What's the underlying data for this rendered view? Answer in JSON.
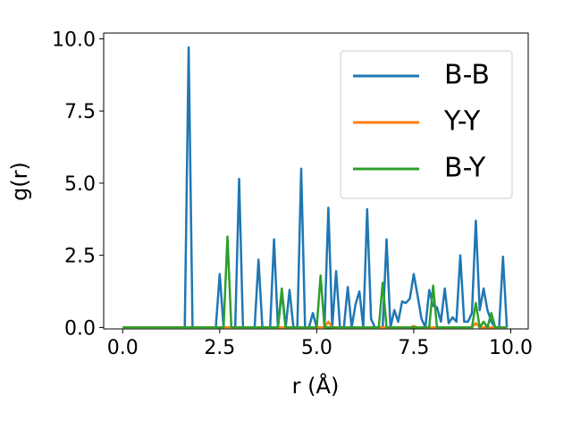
{
  "chart_data": {
    "type": "line",
    "xlabel": "r (Å)",
    "ylabel": "g(r)",
    "x": [
      0,
      0.1,
      0.2,
      0.3,
      0.4,
      0.5,
      0.6,
      0.7,
      0.8,
      0.9,
      1.0,
      1.1,
      1.2,
      1.3,
      1.4,
      1.5,
      1.6,
      1.7,
      1.8,
      1.9,
      2.0,
      2.1,
      2.2,
      2.3,
      2.4,
      2.5,
      2.6,
      2.7,
      2.8,
      2.9,
      3.0,
      3.1,
      3.2,
      3.3,
      3.4,
      3.5,
      3.6,
      3.7,
      3.8,
      3.9,
      4.0,
      4.1,
      4.2,
      4.3,
      4.4,
      4.5,
      4.6,
      4.7,
      4.8,
      4.9,
      5.0,
      5.1,
      5.2,
      5.3,
      5.4,
      5.5,
      5.6,
      5.7,
      5.8,
      5.9,
      6.0,
      6.1,
      6.2,
      6.3,
      6.4,
      6.5,
      6.6,
      6.7,
      6.8,
      6.9,
      7.0,
      7.1,
      7.2,
      7.3,
      7.4,
      7.5,
      7.6,
      7.7,
      7.8,
      7.9,
      8.0,
      8.1,
      8.2,
      8.3,
      8.4,
      8.5,
      8.6,
      8.7,
      8.8,
      8.9,
      9.0,
      9.1,
      9.2,
      9.3,
      9.4,
      9.5,
      9.6,
      9.7,
      9.8,
      9.9
    ],
    "series": [
      {
        "name": "B-B",
        "color": "#1f77b4",
        "values": [
          0,
          0,
          0,
          0,
          0,
          0,
          0,
          0,
          0,
          0,
          0,
          0,
          0,
          0,
          0,
          0,
          0,
          9.7,
          0,
          0,
          0,
          0,
          0,
          0,
          0,
          1.85,
          0,
          0,
          0,
          0,
          5.15,
          0,
          0,
          0,
          0,
          2.35,
          0,
          0,
          0,
          3.05,
          0,
          1.2,
          0,
          1.3,
          0,
          0,
          5.5,
          0,
          0,
          0.5,
          0,
          0,
          0,
          4.15,
          0,
          1.95,
          0,
          0,
          1.4,
          0,
          0.8,
          1.25,
          0,
          4.1,
          0.3,
          0,
          0,
          0,
          3.05,
          0,
          0.6,
          0.2,
          0.9,
          0.85,
          1.0,
          1.85,
          1.1,
          0.3,
          0,
          1.3,
          0.75,
          0.7,
          0.2,
          1.35,
          0.15,
          0.35,
          0.2,
          2.5,
          0.2,
          0.2,
          0.5,
          3.7,
          0.6,
          1.35,
          0.6,
          0.2,
          0,
          0,
          2.45,
          0
        ]
      },
      {
        "name": "Y-Y",
        "color": "#ff7f0e",
        "values": [
          0,
          0,
          0,
          0,
          0,
          0,
          0,
          0,
          0,
          0,
          0,
          0,
          0,
          0,
          0,
          0,
          0,
          0,
          0,
          0,
          0,
          0,
          0,
          0,
          0,
          0,
          0,
          0,
          0,
          0,
          0,
          0,
          0,
          0,
          0,
          0,
          0,
          0,
          0,
          0,
          0,
          0,
          0,
          0,
          0,
          0,
          0,
          0,
          0,
          0,
          0,
          0,
          0,
          0.2,
          0,
          0,
          0,
          0,
          0,
          0,
          0,
          0,
          0,
          0,
          0,
          0,
          0,
          0,
          0,
          0,
          0,
          0,
          0,
          0,
          0,
          0.05,
          0,
          0,
          0,
          0,
          0,
          0,
          0,
          0,
          0,
          0,
          0,
          0,
          0,
          0,
          0,
          0.15,
          0,
          0,
          0,
          0,
          0,
          0,
          0,
          0
        ]
      },
      {
        "name": "B-Y",
        "color": "#2ca02c",
        "values": [
          0,
          0,
          0,
          0,
          0,
          0,
          0,
          0,
          0,
          0,
          0,
          0,
          0,
          0,
          0,
          0,
          0,
          0,
          0,
          0,
          0,
          0,
          0,
          0,
          0,
          0,
          0,
          3.15,
          0,
          0,
          0,
          0,
          0,
          0,
          0,
          0,
          0,
          0,
          0,
          0,
          0,
          1.35,
          0,
          0,
          0,
          0,
          0,
          0,
          0,
          0,
          0,
          1.8,
          0,
          0,
          0,
          0,
          0,
          0,
          0,
          0,
          0,
          0,
          0,
          0,
          0,
          0,
          0,
          1.55,
          0,
          0,
          0,
          0,
          0,
          0,
          0,
          0,
          0,
          0,
          0,
          0,
          1.45,
          0,
          0,
          0,
          0,
          0,
          0,
          0,
          0,
          0,
          0,
          0.85,
          0,
          0.2,
          0,
          0.5,
          0,
          0,
          0,
          0
        ]
      }
    ],
    "xlim": [
      -0.49,
      10.45
    ],
    "ylim": [
      -0.05,
      10.2
    ],
    "xticks": [
      {
        "value": 0,
        "label": "0.0"
      },
      {
        "value": 2.5,
        "label": "2.5"
      },
      {
        "value": 5,
        "label": "5.0"
      },
      {
        "value": 7.5,
        "label": "7.5"
      },
      {
        "value": 10,
        "label": "10.0"
      }
    ],
    "yticks": [
      {
        "value": 0,
        "label": "0.0"
      },
      {
        "value": 2.5,
        "label": "2.5"
      },
      {
        "value": 5,
        "label": "5.0"
      },
      {
        "value": 7.5,
        "label": "7.5"
      },
      {
        "value": 10,
        "label": "10.0"
      }
    ],
    "legend": "upper right"
  }
}
